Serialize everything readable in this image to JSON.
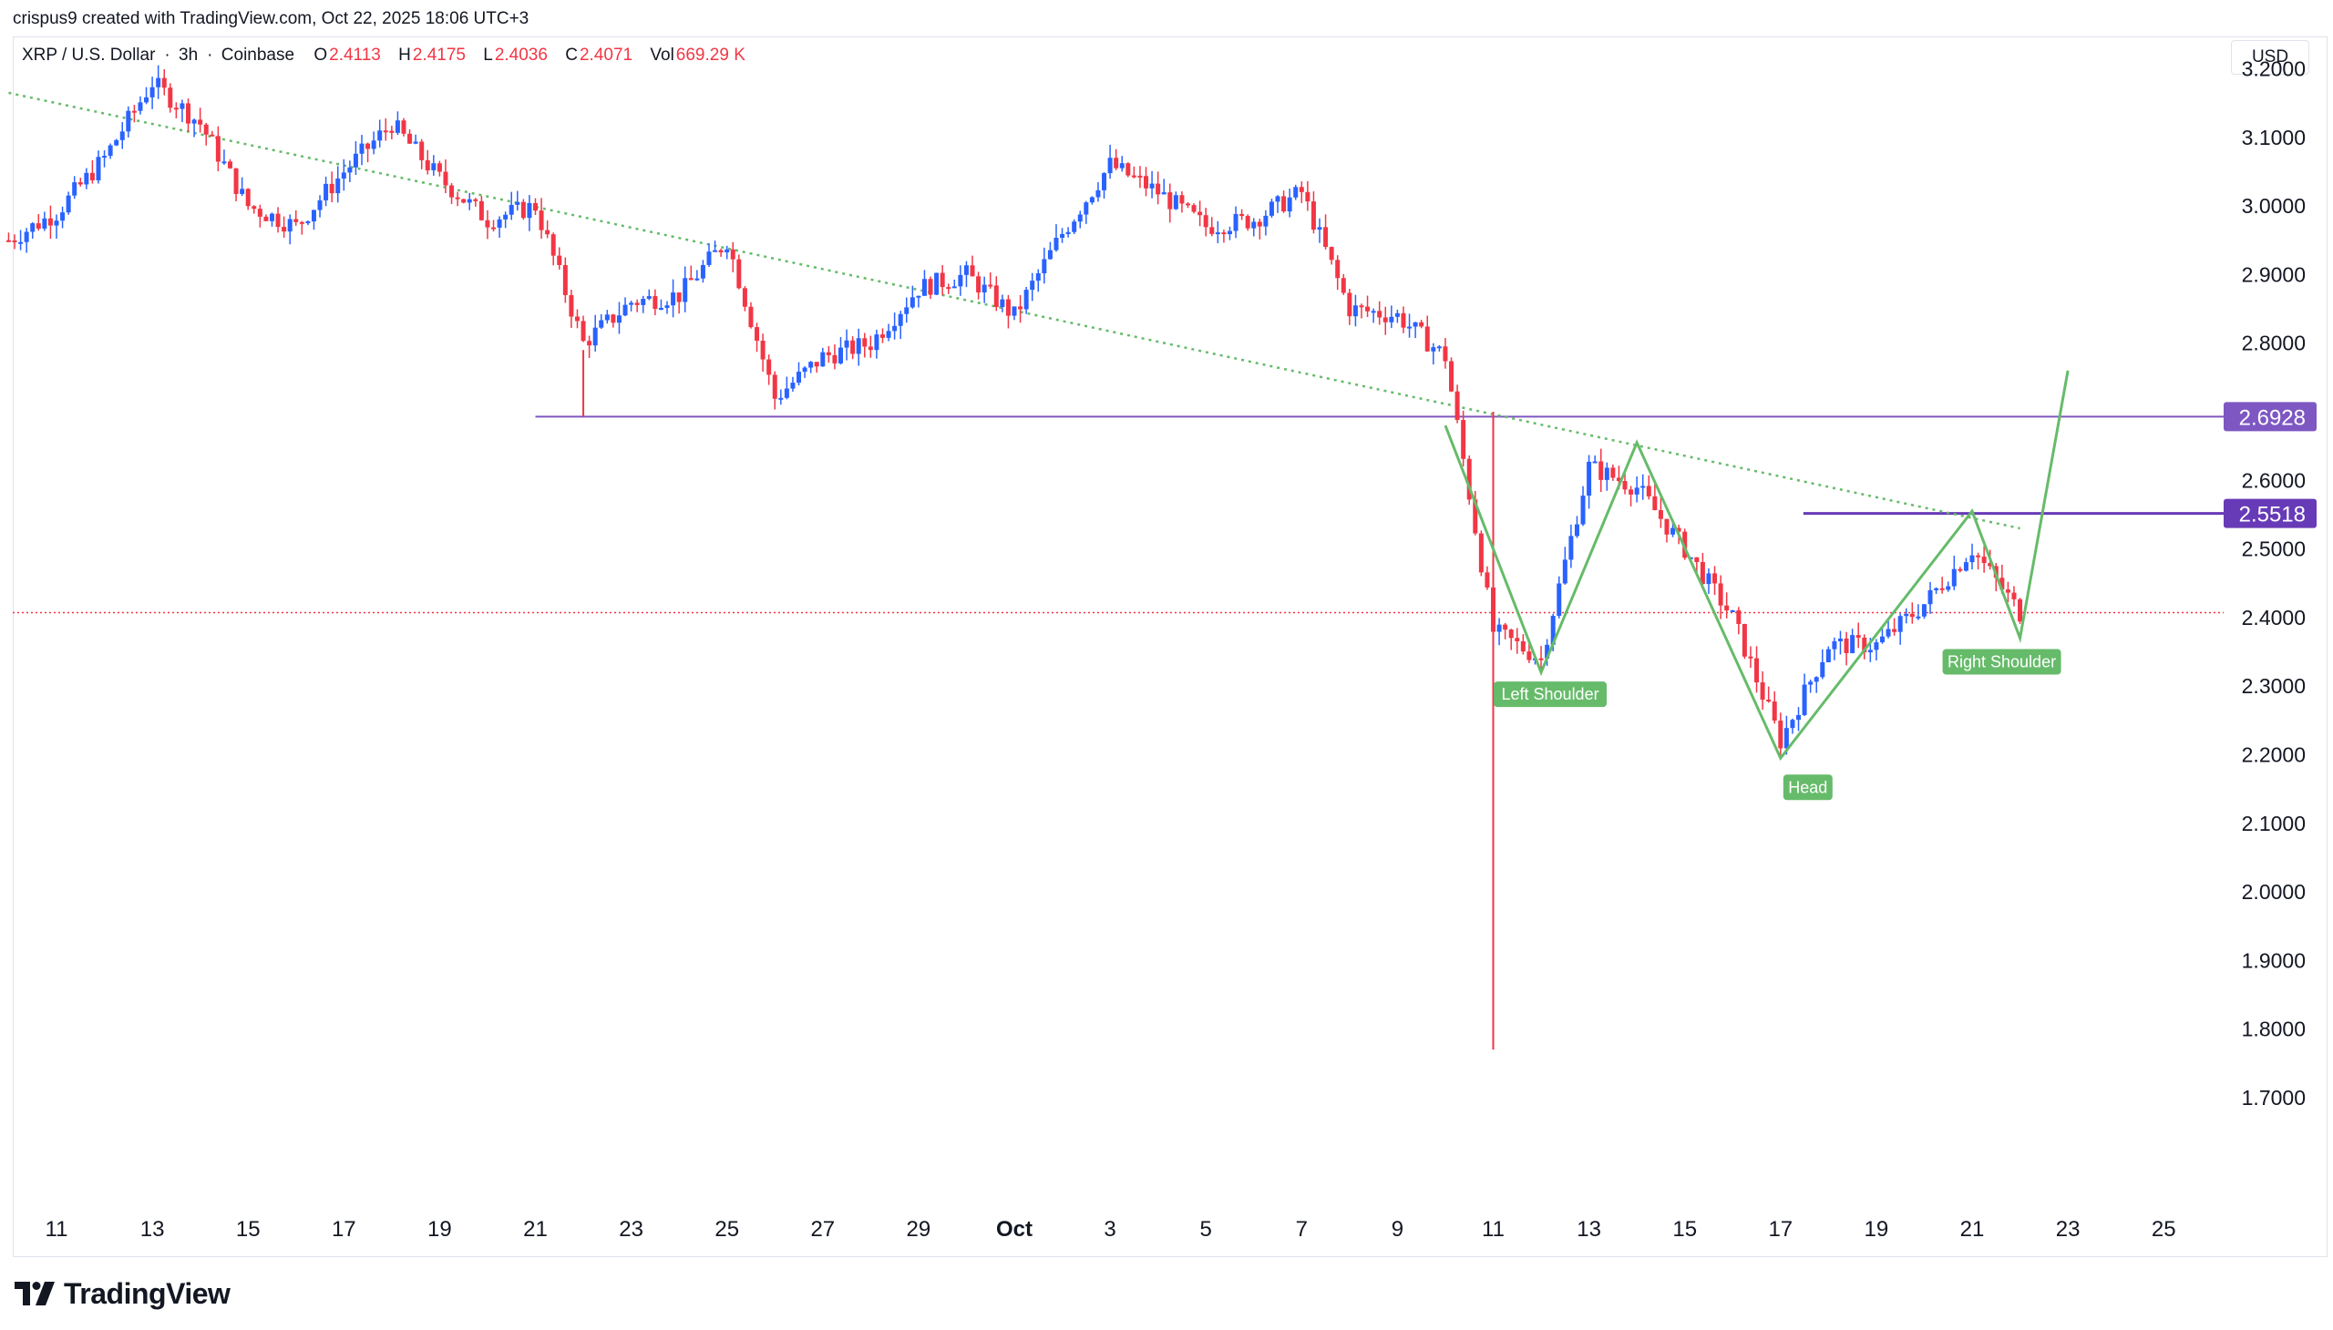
{
  "credit": "crispus9 created with TradingView.com, Oct 22, 2025 18:06 UTC+3",
  "header": {
    "symbol": "XRP / U.S. Dollar",
    "interval": "3h",
    "exchange": "Coinbase",
    "o_label": "O",
    "o_value": "2.4113",
    "h_label": "H",
    "h_value": "2.4175",
    "l_label": "L",
    "l_value": "2.4036",
    "c_label": "C",
    "c_value": "2.4071",
    "vol_label": "Vol",
    "vol_value": "669.29 K"
  },
  "price_unit": "USD",
  "brand": "TradingView",
  "colors": {
    "up": "#2962ff",
    "down": "#f23645",
    "pattern": "#66bb6a",
    "level": "#7e57c2",
    "level_dark": "#673ab7",
    "last_price_line": "#f23645"
  },
  "chart_data": {
    "type": "candlestick",
    "interval": "3h",
    "x_axis_labels": [
      "11",
      "13",
      "15",
      "17",
      "19",
      "21",
      "23",
      "25",
      "27",
      "29",
      "Oct",
      "3",
      "5",
      "7",
      "9",
      "11",
      "13",
      "15",
      "17",
      "19",
      "21",
      "23",
      "25"
    ],
    "y_axis_labels": [
      "1.7000",
      "1.8000",
      "1.9000",
      "2.0000",
      "2.1000",
      "2.2000",
      "2.3000",
      "2.4000",
      "2.5000",
      "2.6000",
      "2.7000",
      "2.8000",
      "2.9000",
      "3.0000",
      "3.1000",
      "3.2000"
    ],
    "ylim": [
      1.62,
      3.3
    ],
    "price_levels": [
      {
        "label": "2.6928",
        "value": 2.6928
      },
      {
        "label": "2.5518",
        "value": 2.5518
      }
    ],
    "last_price": 2.4071,
    "pattern_labels": [
      "Left Shoulder",
      "Head",
      "Right Shoulder"
    ],
    "descending_trendline": [
      [
        "Sep 10",
        3.165
      ],
      [
        "Oct 22",
        2.53
      ]
    ],
    "pattern_path": [
      [
        "Oct 10",
        2.68
      ],
      [
        "Oct 12",
        2.32
      ],
      [
        "Oct 14",
        2.655
      ],
      [
        "Oct 17",
        2.195
      ],
      [
        "Oct 21",
        2.555
      ],
      [
        "Oct 22",
        2.37
      ],
      [
        "Oct 23",
        2.76
      ]
    ],
    "price_path": [
      [
        "Sep 10",
        2.95
      ],
      [
        "Sep 11",
        2.99
      ],
      [
        "Sep 12",
        3.07
      ],
      [
        "Sep 13",
        3.18
      ],
      [
        "Sep 14",
        3.12
      ],
      [
        "Sep 15",
        3.0
      ],
      [
        "Sep 16",
        2.97
      ],
      [
        "Sep 17",
        3.05
      ],
      [
        "Sep 18",
        3.12
      ],
      [
        "Sep 19",
        3.04
      ],
      [
        "Sep 20",
        2.98
      ],
      [
        "Sep 21",
        3.0
      ],
      [
        "Sep 22",
        2.8
      ],
      [
        "Sep 23",
        2.86
      ],
      [
        "Sep 24",
        2.87
      ],
      [
        "Sep 25",
        2.95
      ],
      [
        "Sep 26",
        2.72
      ],
      [
        "Sep 27",
        2.78
      ],
      [
        "Sep 28",
        2.8
      ],
      [
        "Sep 29",
        2.88
      ],
      [
        "Sep 30",
        2.9
      ],
      [
        "Oct 1",
        2.84
      ],
      [
        "Oct 2",
        2.96
      ],
      [
        "Oct 3",
        3.06
      ],
      [
        "Oct 4",
        3.02
      ],
      [
        "Oct 5",
        2.97
      ],
      [
        "Oct 6",
        2.98
      ],
      [
        "Oct 7",
        3.02
      ],
      [
        "Oct 8",
        2.85
      ],
      [
        "Oct 9",
        2.84
      ],
      [
        "Oct 10",
        2.78
      ],
      [
        "Oct 11",
        2.38
      ],
      [
        "Oct 12",
        2.34
      ],
      [
        "Oct 13",
        2.62
      ],
      [
        "Oct 14",
        2.59
      ],
      [
        "Oct 15",
        2.5
      ],
      [
        "Oct 16",
        2.4
      ],
      [
        "Oct 17",
        2.22
      ],
      [
        "Oct 18",
        2.36
      ],
      [
        "Oct 19",
        2.36
      ],
      [
        "Oct 20",
        2.42
      ],
      [
        "Oct 21",
        2.5
      ],
      [
        "Oct 22",
        2.407
      ]
    ],
    "flash_crash_low": 1.77
  }
}
